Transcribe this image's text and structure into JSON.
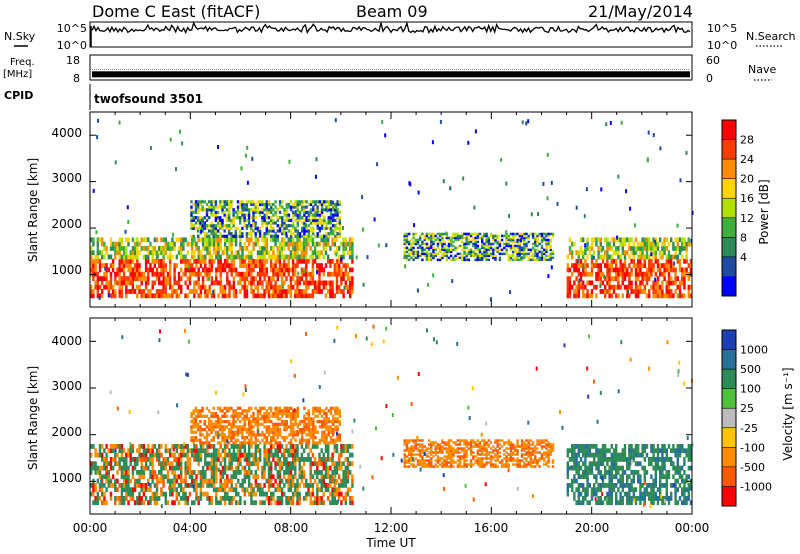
{
  "header": {
    "station": "Dome C East (fitACF)",
    "beam": "Beam 09",
    "date": "21/May/2014"
  },
  "left_labels": {
    "nsky": "N.Sky",
    "freq": "Freq.",
    "freq_unit": "[MHz]",
    "cpid": "CPID"
  },
  "right_labels": {
    "nsearch": "N.Search",
    "nave": "Nave"
  },
  "cpid_text": "twofsound 3501",
  "chart_data": [
    {
      "type": "line",
      "name": "noise-panel",
      "y_ticks_left": [
        "10^5",
        "10^0"
      ],
      "y_ticks_right": [
        "10^5",
        "10^0"
      ],
      "x": [
        "00:00",
        "24:00"
      ],
      "level_fraction": 0.7
    },
    {
      "type": "line",
      "name": "frequency-panel",
      "y_ticks_left": [
        "18",
        "8"
      ],
      "y_ticks_right": [
        "60",
        "0"
      ],
      "ylim_left": [
        8,
        18
      ],
      "ylim_right": [
        0,
        60
      ],
      "freq_mhz": 10.3
    },
    {
      "type": "heatmap",
      "name": "power-panel",
      "ylabel": "Slant Range [km]",
      "ylim": [
        300,
        4500
      ],
      "y_ticks": [
        "1000",
        "2000",
        "3000",
        "4000"
      ],
      "colorbar_label": "Power [dB]",
      "colorbar_ticks": [
        "28",
        "24",
        "20",
        "16",
        "12",
        "8",
        "4"
      ],
      "colorbar_colors": [
        "#ff0000",
        "#ff3d00",
        "#ff8c00",
        "#ffd400",
        "#b2e100",
        "#3fae3d",
        "#2e8b57",
        "#1e4da0",
        "#0000ff"
      ],
      "echo_regions": [
        {
          "t": [
            0.0,
            10.5
          ],
          "r": [
            500,
            1800
          ],
          "level": "high"
        },
        {
          "t": [
            4.0,
            10.0
          ],
          "r": [
            1800,
            2600
          ],
          "level": "mid"
        },
        {
          "t": [
            12.5,
            18.5
          ],
          "r": [
            1300,
            1900
          ],
          "level": "mid"
        },
        {
          "t": [
            19.0,
            24.0
          ],
          "r": [
            500,
            1800
          ],
          "level": "high"
        }
      ]
    },
    {
      "type": "heatmap",
      "name": "velocity-panel",
      "ylabel": "Slant Range [km]",
      "ylim": [
        300,
        4500
      ],
      "y_ticks": [
        "1000",
        "2000",
        "3000",
        "4000"
      ],
      "colorbar_label": "Velocity [m s⁻¹]",
      "colorbar_ticks": [
        "1000",
        "500",
        "100",
        "25",
        "-25",
        "-100",
        "-500",
        "-1000"
      ],
      "colorbar_colors": [
        "#1e3fb4",
        "#2a6e9b",
        "#2e8b57",
        "#4fc13a",
        "#bcbcbc",
        "#ffc400",
        "#ff8c00",
        "#ff5a00",
        "#ff0000"
      ],
      "echo_regions": [
        {
          "t": [
            0.0,
            10.5
          ],
          "r": [
            500,
            1800
          ],
          "level": "mixed"
        },
        {
          "t": [
            4.0,
            10.0
          ],
          "r": [
            1800,
            2600
          ],
          "level": "away"
        },
        {
          "t": [
            12.5,
            18.5
          ],
          "r": [
            1300,
            1900
          ],
          "level": "away"
        },
        {
          "t": [
            19.0,
            24.0
          ],
          "r": [
            500,
            1800
          ],
          "level": "toward"
        }
      ]
    }
  ],
  "x_axis": {
    "label": "Time UT",
    "ticks": [
      "00:00",
      "04:00",
      "08:00",
      "12:00",
      "16:00",
      "20:00",
      "00:00"
    ]
  }
}
